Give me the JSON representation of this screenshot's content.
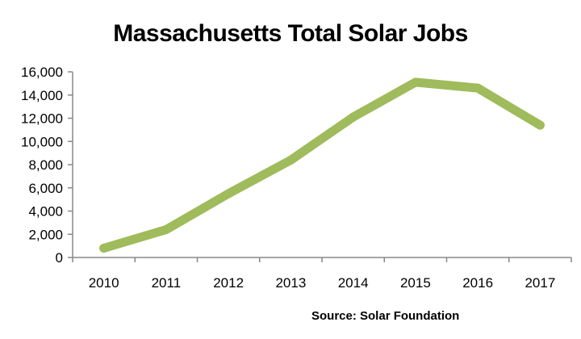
{
  "chart_data": {
    "type": "line",
    "title": "Massachusetts Total Solar Jobs",
    "source": "Source: Solar Foundation",
    "xlabel": "",
    "ylabel": "",
    "categories": [
      "2010",
      "2011",
      "2012",
      "2013",
      "2014",
      "2015",
      "2016",
      "2017"
    ],
    "series": [
      {
        "values": [
          800,
          2400,
          5500,
          8400,
          12100,
          15100,
          14600,
          11400
        ],
        "color": "#9fbb5c"
      }
    ],
    "ylim": [
      0,
      16000
    ],
    "yticks": [
      0,
      2000,
      4000,
      6000,
      8000,
      10000,
      12000,
      14000,
      16000
    ],
    "ytick_labels": [
      "0",
      "2,000",
      "4,000",
      "6,000",
      "8,000",
      "10,000",
      "12,000",
      "14,000",
      "16,000"
    ],
    "axis_color": "#888888",
    "grid": false,
    "legend": "none"
  }
}
